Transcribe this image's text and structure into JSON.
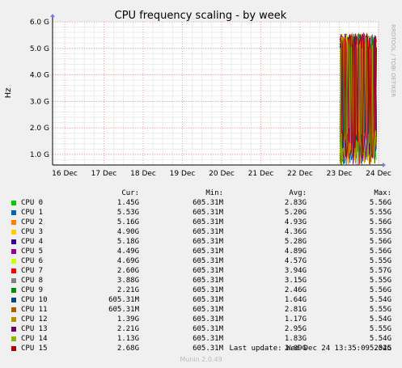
{
  "chart_data": {
    "type": "line",
    "title": "CPU frequency scaling - by week",
    "ylabel": "Hz",
    "watermark": "RRDTOOL / TOBI OETIKER",
    "x_ticks": [
      "16 Dec",
      "17 Dec",
      "18 Dec",
      "19 Dec",
      "20 Dec",
      "21 Dec",
      "22 Dec",
      "23 Dec",
      "24 Dec"
    ],
    "y_ticks": [
      "1.0 G",
      "2.0 G",
      "3.0 G",
      "4.0 G",
      "5.0 G",
      "6.0 G"
    ],
    "ylim": [
      0.6,
      6.0
    ],
    "data_start": "23 Dec",
    "data_end": "24 Dec 13:35",
    "grid": true,
    "legend": {
      "headers": [
        "Cur:",
        "Min:",
        "Avg:",
        "Max:"
      ],
      "entries": [
        {
          "name": "CPU 0",
          "color": "#00cc00",
          "cur": "1.45G",
          "min": "605.31M",
          "avg": "2.83G",
          "max": "5.56G"
        },
        {
          "name": "CPU 1",
          "color": "#0066b3",
          "cur": "5.53G",
          "min": "605.31M",
          "avg": "5.20G",
          "max": "5.55G"
        },
        {
          "name": "CPU 2",
          "color": "#ff8000",
          "cur": "5.16G",
          "min": "605.31M",
          "avg": "4.93G",
          "max": "5.56G"
        },
        {
          "name": "CPU 3",
          "color": "#ffcc00",
          "cur": "4.90G",
          "min": "605.31M",
          "avg": "4.36G",
          "max": "5.55G"
        },
        {
          "name": "CPU 4",
          "color": "#330099",
          "cur": "5.18G",
          "min": "605.31M",
          "avg": "5.28G",
          "max": "5.56G"
        },
        {
          "name": "CPU 5",
          "color": "#990099",
          "cur": "4.49G",
          "min": "605.31M",
          "avg": "4.89G",
          "max": "5.56G"
        },
        {
          "name": "CPU 6",
          "color": "#ccff00",
          "cur": "4.69G",
          "min": "605.31M",
          "avg": "4.57G",
          "max": "5.55G"
        },
        {
          "name": "CPU 7",
          "color": "#ff0000",
          "cur": "2.60G",
          "min": "605.31M",
          "avg": "3.94G",
          "max": "5.57G"
        },
        {
          "name": "CPU 8",
          "color": "#808080",
          "cur": "3.88G",
          "min": "605.31M",
          "avg": "3.15G",
          "max": "5.55G"
        },
        {
          "name": "CPU 9",
          "color": "#008f00",
          "cur": "2.21G",
          "min": "605.31M",
          "avg": "2.46G",
          "max": "5.56G"
        },
        {
          "name": "CPU 10",
          "color": "#00487d",
          "cur": "605.31M",
          "min": "605.31M",
          "avg": "1.64G",
          "max": "5.54G"
        },
        {
          "name": "CPU 11",
          "color": "#b35a00",
          "cur": "605.31M",
          "min": "605.31M",
          "avg": "2.81G",
          "max": "5.55G"
        },
        {
          "name": "CPU 12",
          "color": "#b38f00",
          "cur": "1.39G",
          "min": "605.31M",
          "avg": "1.17G",
          "max": "5.54G"
        },
        {
          "name": "CPU 13",
          "color": "#6b006b",
          "cur": "2.21G",
          "min": "605.31M",
          "avg": "2.95G",
          "max": "5.55G"
        },
        {
          "name": "CPU 14",
          "color": "#8fb300",
          "cur": "1.13G",
          "min": "605.31M",
          "avg": "1.83G",
          "max": "5.54G"
        },
        {
          "name": "CPU 15",
          "color": "#b30000",
          "cur": "2.68G",
          "min": "605.31M",
          "avg": "2.09G",
          "max": "5.54G"
        }
      ]
    }
  },
  "last_update": "Last update: Wed Dec 24 13:35:09 2025",
  "footer": "Munin 2.0.49"
}
